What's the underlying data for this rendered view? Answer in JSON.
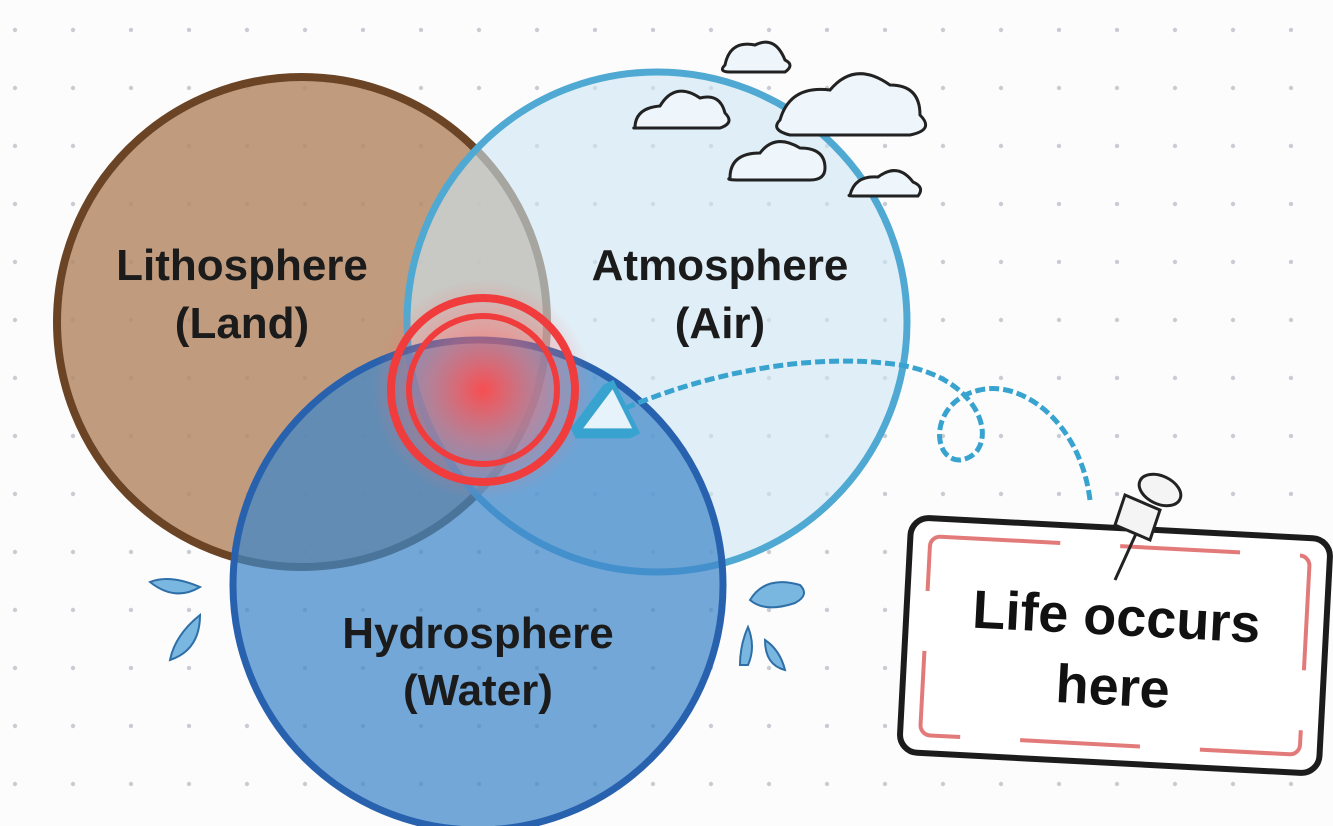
{
  "nodes": [
    {
      "name": "Lithosphere",
      "label": "(Land)"
    },
    {
      "name": "Atmosphere",
      "label": "(Air)"
    },
    {
      "name": "Hydrosphere",
      "label": "(Water)"
    }
  ],
  "callout": {
    "lines": [
      "Life occurs",
      "here"
    ]
  }
}
